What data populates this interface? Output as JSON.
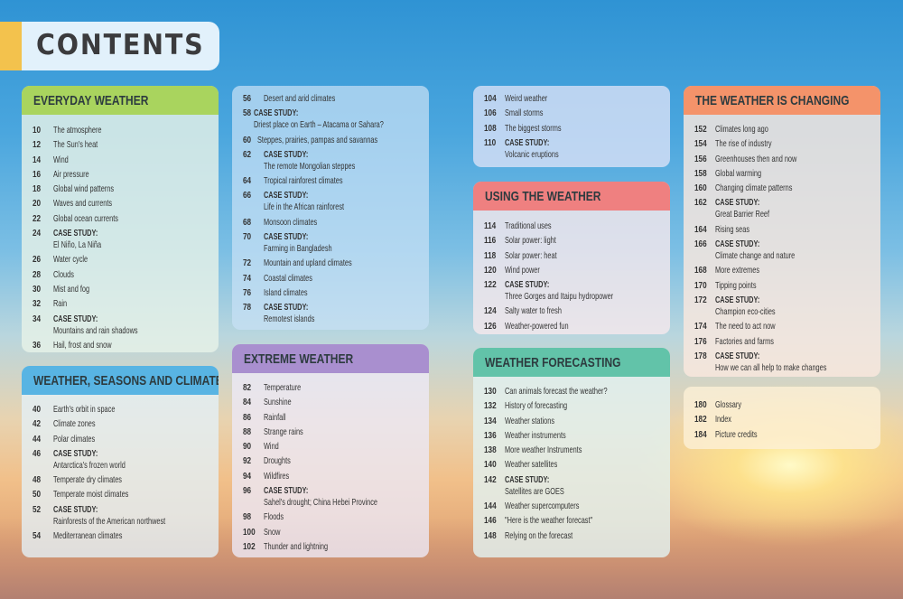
{
  "title": "CONTENTS",
  "case_label": "CASE STUDY:",
  "panels": [
    {
      "id": "everyday-weather",
      "header": "EVERYDAY WEATHER",
      "color": "#a9d45e",
      "items": [
        {
          "page": "10",
          "text": "The atmosphere"
        },
        {
          "page": "12",
          "text": "The Sun's heat"
        },
        {
          "page": "14",
          "text": "Wind"
        },
        {
          "page": "16",
          "text": "Air pressure"
        },
        {
          "page": "18",
          "text": "Global wind patterns"
        },
        {
          "page": "20",
          "text": "Waves and currents"
        },
        {
          "page": "22",
          "text": "Global ocean currents"
        },
        {
          "page": "24",
          "case": true,
          "text": "El Niño, La Niña"
        },
        {
          "page": "26",
          "text": "Water cycle"
        },
        {
          "page": "28",
          "text": "Clouds"
        },
        {
          "page": "30",
          "text": "Mist and fog"
        },
        {
          "page": "32",
          "text": "Rain"
        },
        {
          "page": "34",
          "case": true,
          "text": "Mountains and rain shadows"
        },
        {
          "page": "36",
          "text": "Hail, frost and snow"
        }
      ]
    },
    {
      "id": "weather-seasons-climates",
      "header": "WEATHER, SEASONS AND CLIMATES",
      "color": "#58b4e3",
      "items": [
        {
          "page": "40",
          "text": "Earth's orbit in space"
        },
        {
          "page": "42",
          "text": "Climate zones"
        },
        {
          "page": "44",
          "text": "Polar climates"
        },
        {
          "page": "46",
          "case": true,
          "text": "Antarctica's frozen world"
        },
        {
          "page": "48",
          "text": "Temperate dry climates"
        },
        {
          "page": "50",
          "text": "Temperate moist climates"
        },
        {
          "page": "52",
          "case": true,
          "text": "Rainforests of the American northwest"
        },
        {
          "page": "54",
          "text": "Mediterranean climates"
        }
      ]
    },
    {
      "id": "climates-continued",
      "header": "",
      "color": "",
      "items": [
        {
          "page": "56",
          "text": "Desert and arid climates"
        },
        {
          "page": "58",
          "case": true,
          "text": "Driest place on Earth – Atacama or Sahara?"
        },
        {
          "page": "60",
          "text": "Steppes, prairies, pampas and savannas"
        },
        {
          "page": "62",
          "case": true,
          "text": "The remote Mongolian steppes"
        },
        {
          "page": "64",
          "text": "Tropical rainforest climates"
        },
        {
          "page": "66",
          "case": true,
          "text": "Life in the African rainforest"
        },
        {
          "page": "68",
          "text": "Monsoon climates"
        },
        {
          "page": "70",
          "case": true,
          "text": "Farming in Bangladesh"
        },
        {
          "page": "72",
          "text": "Mountain and upland climates"
        },
        {
          "page": "74",
          "text": "Coastal climates"
        },
        {
          "page": "76",
          "text": "Island climates"
        },
        {
          "page": "78",
          "case": true,
          "text": "Remotest islands"
        }
      ]
    },
    {
      "id": "extreme-weather",
      "header": "EXTREME WEATHER",
      "color": "#a98fcf",
      "items": [
        {
          "page": "82",
          "text": "Temperature"
        },
        {
          "page": "84",
          "text": "Sunshine"
        },
        {
          "page": "86",
          "text": "Rainfall"
        },
        {
          "page": "88",
          "text": "Strange rains"
        },
        {
          "page": "90",
          "text": "Wind"
        },
        {
          "page": "92",
          "text": "Droughts"
        },
        {
          "page": "94",
          "text": "Wildfires"
        },
        {
          "page": "96",
          "case": true,
          "text": "Sahel's drought; China Hebei Province"
        },
        {
          "page": "98",
          "text": "Floods"
        },
        {
          "page": "100",
          "text": "Snow"
        },
        {
          "page": "102",
          "text": "Thunder and lightning"
        }
      ]
    },
    {
      "id": "extreme-continued",
      "header": "",
      "color": "",
      "items": [
        {
          "page": "104",
          "text": "Weird weather"
        },
        {
          "page": "106",
          "text": "Small storms"
        },
        {
          "page": "108",
          "text": "The biggest storms"
        },
        {
          "page": "110",
          "case": true,
          "text": "Volcanic eruptions"
        }
      ]
    },
    {
      "id": "using-the-weather",
      "header": "USING THE WEATHER",
      "color": "#ef8080",
      "items": [
        {
          "page": "114",
          "text": "Traditional uses"
        },
        {
          "page": "116",
          "text": "Solar power: light"
        },
        {
          "page": "118",
          "text": "Solar power: heat"
        },
        {
          "page": "120",
          "text": "Wind power"
        },
        {
          "page": "122",
          "case": true,
          "text": "Three Gorges and Itaipu hydropower"
        },
        {
          "page": "124",
          "text": "Salty water to fresh"
        },
        {
          "page": "126",
          "text": "Weather-powered fun"
        }
      ]
    },
    {
      "id": "weather-forecasting",
      "header": "WEATHER FORECASTING",
      "color": "#62c3a9",
      "items": [
        {
          "page": "130",
          "text": "Can animals forecast the weather?"
        },
        {
          "page": "132",
          "text": "History of forecasting"
        },
        {
          "page": "134",
          "text": "Weather stations"
        },
        {
          "page": "136",
          "text": "Weather instruments"
        },
        {
          "page": "138",
          "text": "More weather Instruments"
        },
        {
          "page": "140",
          "text": "Weather satellites"
        },
        {
          "page": "142",
          "case": true,
          "text": "Satellites are GOES"
        },
        {
          "page": "144",
          "text": "Weather supercomputers"
        },
        {
          "page": "146",
          "text": "\"Here is the weather forecast\""
        },
        {
          "page": "148",
          "text": "Relying on the forecast"
        }
      ]
    },
    {
      "id": "weather-is-changing",
      "header": "THE WEATHER IS CHANGING",
      "color": "#f4936a",
      "items": [
        {
          "page": "152",
          "text": "Climates long ago"
        },
        {
          "page": "154",
          "text": "The rise of industry"
        },
        {
          "page": "156",
          "text": "Greenhouses then and now"
        },
        {
          "page": "158",
          "text": "Global warming"
        },
        {
          "page": "160",
          "text": "Changing climate patterns"
        },
        {
          "page": "162",
          "case": true,
          "text": "Great Barrier Reef"
        },
        {
          "page": "164",
          "text": "Rising seas"
        },
        {
          "page": "166",
          "case": true,
          "text": "Climate change and nature"
        },
        {
          "page": "168",
          "text": "More extremes"
        },
        {
          "page": "170",
          "text": "Tipping points"
        },
        {
          "page": "172",
          "case": true,
          "text": "Champion eco-cities"
        },
        {
          "page": "174",
          "text": "The need to act now"
        },
        {
          "page": "176",
          "text": "Factories and farms"
        },
        {
          "page": "178",
          "case": true,
          "text": "How we can all help to make changes"
        }
      ]
    },
    {
      "id": "back-matter",
      "header": "",
      "color": "",
      "items": [
        {
          "page": "180",
          "text": "Glossary"
        },
        {
          "page": "182",
          "text": "Index"
        },
        {
          "page": "184",
          "text": "Picture credits"
        }
      ]
    }
  ]
}
